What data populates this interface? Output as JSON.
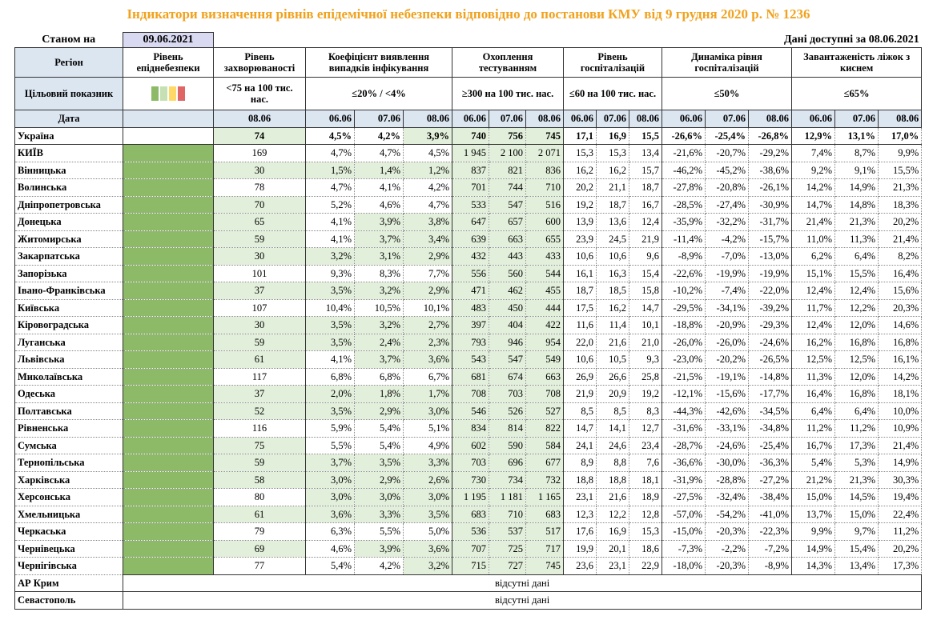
{
  "title": "Індикатори визначення рівнів епідемічної небезпеки відповідно до постанови КМУ від 9 грудня 2020 р. № 1236",
  "as_of_label": "Станом на",
  "as_of_date": "09.06.2021",
  "available": "Дані доступні за  08.06.2021",
  "headers": [
    "Регіон",
    "Рівень епіднебезпеки",
    "Рівень захворюваності",
    "Коефіцієнт виявлення випадків інфікування",
    "Охоплення тестуванням",
    "Рівень госпіталізацій",
    "Динаміка рівня госпіталізацій",
    "Завантаженість ліжок з киснем"
  ],
  "target_label": "Цільовий показник",
  "targets": [
    "<75 на 100 тис. нас.",
    "≤20% / <4%",
    "≥300 на 100 тис. нас.",
    "≤60 на 100 тис. нас.",
    "≤50%",
    "≤65%"
  ],
  "date_label": "Дата",
  "dates": [
    "08.06",
    "06.06",
    "07.06",
    "08.06",
    "06.06",
    "07.06",
    "08.06",
    "06.06",
    "07.06",
    "08.06",
    "06.06",
    "07.06",
    "08.06",
    "06.06",
    "07.06",
    "08.06"
  ],
  "colors": {
    "highlight": "#e2efda",
    "header": "#dce6f1",
    "as_of": "#d9d9f2",
    "title": "#f0a21e"
  },
  "rows": [
    {
      "region": "Україна",
      "bold": true,
      "values": [
        "74",
        "4,5%",
        "4,2%",
        "3,9%",
        "740",
        "756",
        "745",
        "17,1",
        "16,9",
        "15,5",
        "-26,6%",
        "-25,4%",
        "-26,8%",
        "12,9%",
        "13,1%",
        "17,0%"
      ],
      "highlight": [
        0,
        3,
        4,
        5,
        6
      ]
    },
    {
      "region": "КИЇВ",
      "level": "#8dba67",
      "values": [
        "169",
        "4,7%",
        "4,7%",
        "4,5%",
        "1 945",
        "2 100",
        "2 071",
        "15,3",
        "15,3",
        "13,4",
        "-21,6%",
        "-20,7%",
        "-29,2%",
        "7,4%",
        "8,7%",
        "9,9%"
      ],
      "highlight": [
        4,
        5,
        6
      ]
    },
    {
      "region": "Вінницька",
      "level": "#8dba67",
      "values": [
        "30",
        "1,5%",
        "1,4%",
        "1,2%",
        "837",
        "821",
        "836",
        "16,2",
        "16,2",
        "15,7",
        "-46,2%",
        "-45,2%",
        "-38,6%",
        "9,2%",
        "9,1%",
        "15,5%"
      ],
      "highlight": [
        0,
        1,
        2,
        3,
        4,
        5,
        6
      ]
    },
    {
      "region": "Волинська",
      "level": "#8dba67",
      "values": [
        "78",
        "4,7%",
        "4,1%",
        "4,2%",
        "701",
        "744",
        "710",
        "20,2",
        "21,1",
        "18,7",
        "-27,8%",
        "-20,8%",
        "-26,1%",
        "14,2%",
        "14,9%",
        "21,3%"
      ],
      "highlight": [
        4,
        5,
        6
      ]
    },
    {
      "region": "Дніпропетровська",
      "level": "#8dba67",
      "values": [
        "70",
        "5,2%",
        "4,6%",
        "4,7%",
        "533",
        "547",
        "516",
        "19,2",
        "18,7",
        "16,7",
        "-28,5%",
        "-27,4%",
        "-30,9%",
        "14,7%",
        "14,8%",
        "18,3%"
      ],
      "highlight": [
        0,
        4,
        5,
        6
      ]
    },
    {
      "region": "Донецька",
      "level": "#8dba67",
      "values": [
        "65",
        "4,1%",
        "3,9%",
        "3,8%",
        "647",
        "657",
        "600",
        "13,9",
        "13,6",
        "12,4",
        "-35,9%",
        "-32,2%",
        "-31,7%",
        "21,4%",
        "21,3%",
        "20,2%"
      ],
      "highlight": [
        0,
        2,
        3,
        4,
        5,
        6
      ]
    },
    {
      "region": "Житомирська",
      "level": "#8dba67",
      "values": [
        "59",
        "4,1%",
        "3,7%",
        "3,4%",
        "639",
        "663",
        "655",
        "23,9",
        "24,5",
        "21,9",
        "-11,4%",
        "-4,2%",
        "-15,7%",
        "11,0%",
        "11,3%",
        "21,4%"
      ],
      "highlight": [
        0,
        2,
        3,
        4,
        5,
        6
      ]
    },
    {
      "region": "Закарпатська",
      "level": "#8dba67",
      "values": [
        "30",
        "3,2%",
        "3,1%",
        "2,9%",
        "432",
        "443",
        "433",
        "10,6",
        "10,6",
        "9,6",
        "-8,9%",
        "-7,0%",
        "-13,0%",
        "6,2%",
        "6,4%",
        "8,2%"
      ],
      "highlight": [
        0,
        1,
        2,
        3,
        4,
        5,
        6
      ]
    },
    {
      "region": "Запорізька",
      "level": "#8dba67",
      "values": [
        "101",
        "9,3%",
        "8,3%",
        "7,7%",
        "556",
        "560",
        "544",
        "16,1",
        "16,3",
        "15,4",
        "-22,6%",
        "-19,9%",
        "-19,9%",
        "15,1%",
        "15,5%",
        "16,4%"
      ],
      "highlight": [
        4,
        5,
        6
      ]
    },
    {
      "region": "Івано-Франківська",
      "level": "#8dba67",
      "values": [
        "37",
        "3,5%",
        "3,2%",
        "2,9%",
        "471",
        "462",
        "455",
        "18,7",
        "18,5",
        "15,8",
        "-10,2%",
        "-7,4%",
        "-22,0%",
        "12,4%",
        "12,4%",
        "15,6%"
      ],
      "highlight": [
        0,
        1,
        2,
        3,
        4,
        5,
        6
      ]
    },
    {
      "region": "Київська",
      "level": "#8dba67",
      "values": [
        "107",
        "10,4%",
        "10,5%",
        "10,1%",
        "483",
        "450",
        "444",
        "17,5",
        "16,2",
        "14,7",
        "-29,5%",
        "-34,1%",
        "-39,2%",
        "11,7%",
        "12,2%",
        "20,3%"
      ],
      "highlight": [
        4,
        5,
        6
      ]
    },
    {
      "region": "Кіровоградська",
      "level": "#8dba67",
      "values": [
        "30",
        "3,5%",
        "3,2%",
        "2,7%",
        "397",
        "404",
        "422",
        "11,6",
        "11,4",
        "10,1",
        "-18,8%",
        "-20,9%",
        "-29,3%",
        "12,4%",
        "12,0%",
        "14,6%"
      ],
      "highlight": [
        0,
        1,
        2,
        3,
        4,
        5,
        6
      ]
    },
    {
      "region": "Луганська",
      "level": "#8dba67",
      "values": [
        "59",
        "3,5%",
        "2,4%",
        "2,3%",
        "793",
        "946",
        "954",
        "22,0",
        "21,6",
        "21,0",
        "-26,0%",
        "-26,0%",
        "-24,6%",
        "16,2%",
        "16,8%",
        "16,8%"
      ],
      "highlight": [
        0,
        1,
        2,
        3,
        4,
        5,
        6
      ]
    },
    {
      "region": "Львівська",
      "level": "#8dba67",
      "values": [
        "61",
        "4,1%",
        "3,7%",
        "3,6%",
        "543",
        "547",
        "549",
        "10,6",
        "10,5",
        "9,3",
        "-23,0%",
        "-20,2%",
        "-26,5%",
        "12,5%",
        "12,5%",
        "16,1%"
      ],
      "highlight": [
        0,
        2,
        3,
        4,
        5,
        6
      ]
    },
    {
      "region": "Миколаївська",
      "level": "#8dba67",
      "values": [
        "117",
        "6,8%",
        "6,8%",
        "6,7%",
        "681",
        "674",
        "663",
        "26,9",
        "26,6",
        "25,8",
        "-21,5%",
        "-19,1%",
        "-14,8%",
        "11,3%",
        "12,0%",
        "14,2%"
      ],
      "highlight": [
        4,
        5,
        6
      ]
    },
    {
      "region": "Одеська",
      "level": "#8dba67",
      "values": [
        "37",
        "2,0%",
        "1,8%",
        "1,7%",
        "708",
        "703",
        "708",
        "21,9",
        "20,9",
        "19,2",
        "-12,1%",
        "-15,6%",
        "-17,7%",
        "16,4%",
        "16,8%",
        "18,1%"
      ],
      "highlight": [
        0,
        1,
        2,
        3,
        4,
        5,
        6
      ]
    },
    {
      "region": "Полтавська",
      "level": "#8dba67",
      "values": [
        "52",
        "3,5%",
        "2,9%",
        "3,0%",
        "546",
        "526",
        "527",
        "8,5",
        "8,5",
        "8,3",
        "-44,3%",
        "-42,6%",
        "-34,5%",
        "6,4%",
        "6,4%",
        "10,0%"
      ],
      "highlight": [
        0,
        1,
        2,
        3,
        4,
        5,
        6
      ]
    },
    {
      "region": "Рівненська",
      "level": "#8dba67",
      "values": [
        "116",
        "5,9%",
        "5,4%",
        "5,1%",
        "834",
        "814",
        "822",
        "14,7",
        "14,1",
        "12,7",
        "-31,6%",
        "-33,1%",
        "-34,8%",
        "11,2%",
        "11,2%",
        "10,9%"
      ],
      "highlight": [
        4,
        5,
        6
      ]
    },
    {
      "region": "Сумська",
      "level": "#8dba67",
      "values": [
        "75",
        "5,5%",
        "5,4%",
        "4,9%",
        "602",
        "590",
        "584",
        "24,1",
        "24,6",
        "23,4",
        "-28,7%",
        "-24,6%",
        "-25,4%",
        "16,7%",
        "17,3%",
        "21,4%"
      ],
      "highlight": [
        0,
        4,
        5,
        6
      ]
    },
    {
      "region": "Тернопільська",
      "level": "#8dba67",
      "values": [
        "59",
        "3,7%",
        "3,5%",
        "3,3%",
        "703",
        "696",
        "677",
        "8,9",
        "8,8",
        "7,6",
        "-36,6%",
        "-30,0%",
        "-36,3%",
        "5,4%",
        "5,3%",
        "14,9%"
      ],
      "highlight": [
        0,
        1,
        2,
        3,
        4,
        5,
        6
      ]
    },
    {
      "region": "Харківська",
      "level": "#8dba67",
      "values": [
        "58",
        "3,0%",
        "2,9%",
        "2,6%",
        "730",
        "734",
        "732",
        "18,8",
        "18,8",
        "18,1",
        "-31,9%",
        "-28,8%",
        "-27,2%",
        "21,2%",
        "21,3%",
        "30,3%"
      ],
      "highlight": [
        0,
        1,
        2,
        3,
        4,
        5,
        6
      ]
    },
    {
      "region": "Херсонська",
      "level": "#8dba67",
      "values": [
        "80",
        "3,0%",
        "3,0%",
        "3,0%",
        "1 195",
        "1 181",
        "1 165",
        "23,1",
        "21,6",
        "18,9",
        "-27,5%",
        "-32,4%",
        "-38,4%",
        "15,0%",
        "14,5%",
        "19,4%"
      ],
      "highlight": [
        1,
        2,
        3,
        4,
        5,
        6
      ]
    },
    {
      "region": "Хмельницька",
      "level": "#8dba67",
      "values": [
        "61",
        "3,6%",
        "3,3%",
        "3,5%",
        "683",
        "710",
        "683",
        "12,3",
        "12,2",
        "12,8",
        "-57,0%",
        "-54,2%",
        "-41,0%",
        "13,7%",
        "15,0%",
        "22,4%"
      ],
      "highlight": [
        0,
        1,
        2,
        3,
        4,
        5,
        6
      ]
    },
    {
      "region": "Черкаська",
      "level": "#8dba67",
      "values": [
        "79",
        "6,3%",
        "5,5%",
        "5,0%",
        "536",
        "537",
        "517",
        "17,6",
        "16,9",
        "15,3",
        "-15,0%",
        "-20,3%",
        "-22,3%",
        "9,9%",
        "9,7%",
        "11,2%"
      ],
      "highlight": [
        4,
        5,
        6
      ]
    },
    {
      "region": "Чернівецька",
      "level": "#8dba67",
      "values": [
        "69",
        "4,6%",
        "3,9%",
        "3,6%",
        "707",
        "725",
        "717",
        "19,9",
        "20,1",
        "18,6",
        "-7,3%",
        "-2,2%",
        "-7,2%",
        "14,9%",
        "15,4%",
        "20,2%"
      ],
      "highlight": [
        0,
        2,
        3,
        4,
        5,
        6
      ]
    },
    {
      "region": "Чернігівська",
      "level": "#8dba67",
      "values": [
        "77",
        "5,4%",
        "4,2%",
        "3,2%",
        "715",
        "727",
        "745",
        "23,6",
        "23,1",
        "22,9",
        "-18,0%",
        "-20,3%",
        "-8,9%",
        "14,3%",
        "13,4%",
        "17,3%"
      ],
      "highlight": [
        3,
        4,
        5,
        6
      ]
    }
  ],
  "missing": [
    {
      "region": "АР Крим",
      "note": "відсутні дані"
    },
    {
      "region": "Севастополь",
      "note": "відсутні дані"
    }
  ]
}
